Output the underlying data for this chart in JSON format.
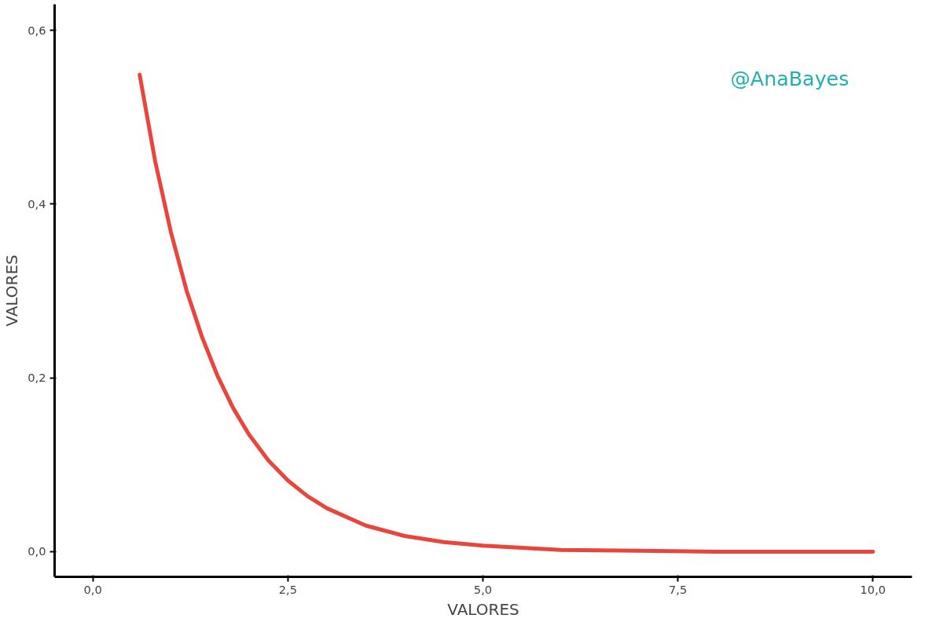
{
  "chart_data": {
    "type": "line",
    "xlabel": "VALORES",
    "ylabel": "VALORES",
    "x": [
      0.6,
      0.8,
      1.0,
      1.2,
      1.4,
      1.6,
      1.8,
      2.0,
      2.25,
      2.5,
      2.75,
      3.0,
      3.5,
      4.0,
      4.5,
      5.0,
      6.0,
      7.0,
      8.0,
      9.0,
      10.0
    ],
    "series": [
      {
        "color": "#e8453c",
        "values": [
          0.549,
          0.449,
          0.368,
          0.301,
          0.247,
          0.202,
          0.165,
          0.135,
          0.105,
          0.082,
          0.064,
          0.05,
          0.03,
          0.018,
          0.011,
          0.007,
          0.002,
          0.001,
          0.0,
          0.0,
          0.0
        ]
      }
    ],
    "xlim": [
      -0.49,
      10.5
    ],
    "ylim": [
      -0.029,
      0.63
    ],
    "xticks": [
      {
        "value": 0,
        "label": "0,0"
      },
      {
        "value": 2.5,
        "label": "2,5"
      },
      {
        "value": 5,
        "label": "5,0"
      },
      {
        "value": 7.5,
        "label": "7,5"
      },
      {
        "value": 10,
        "label": "10,0"
      }
    ],
    "yticks": [
      {
        "value": 0,
        "label": "0,0"
      },
      {
        "value": 0.2,
        "label": "0,2"
      },
      {
        "value": 0.4,
        "label": "0,4"
      },
      {
        "value": 0.6,
        "label": "0,6"
      }
    ],
    "annotations": [
      "@AnaBayes"
    ],
    "grid": false,
    "marker": "none",
    "line_style": "solid"
  }
}
